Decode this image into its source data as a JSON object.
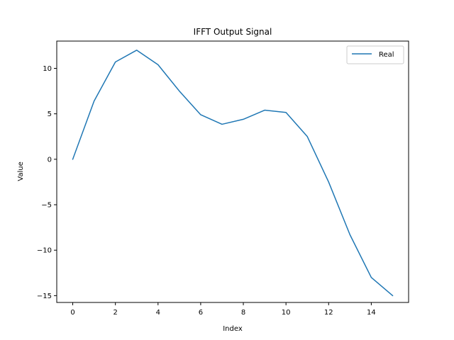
{
  "chart_data": {
    "type": "line",
    "title": "IFFT Output Signal",
    "xlabel": "Index",
    "ylabel": "Value",
    "xlim": [
      -0.75,
      15.75
    ],
    "ylim": [
      -15.75,
      13.0
    ],
    "xticks": [
      0,
      2,
      4,
      6,
      8,
      10,
      12,
      14
    ],
    "yticks": [
      -15,
      -10,
      -5,
      0,
      5,
      10
    ],
    "grid": false,
    "legend": {
      "position": "top-right"
    },
    "series": [
      {
        "name": "Real",
        "color": "#1f77b4",
        "x": [
          0,
          1,
          2,
          3,
          4,
          5,
          6,
          7,
          8,
          9,
          10,
          11,
          12,
          13,
          14,
          15
        ],
        "y": [
          0.0,
          6.4,
          10.7,
          12.0,
          10.4,
          7.5,
          4.9,
          3.85,
          4.4,
          5.4,
          5.15,
          2.5,
          -2.5,
          -8.3,
          -13.0,
          -15.0
        ]
      }
    ]
  }
}
